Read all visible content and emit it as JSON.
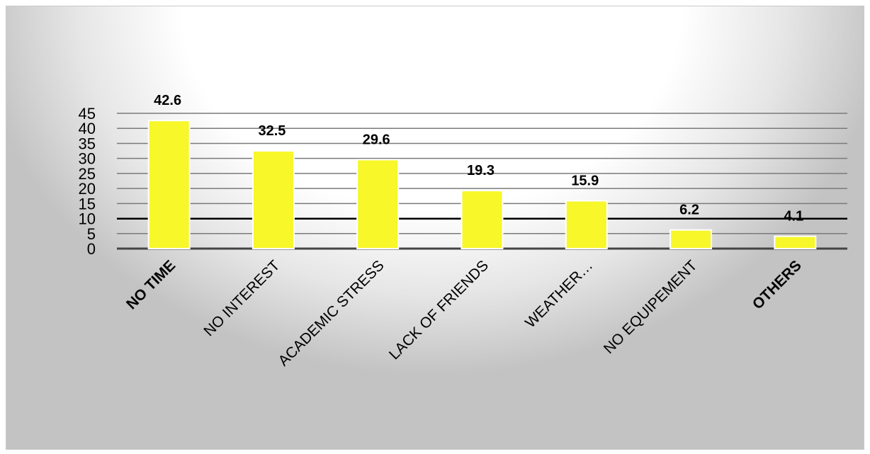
{
  "chart_data": {
    "type": "bar",
    "title": "",
    "xlabel": "",
    "ylabel": "",
    "categories": [
      "NO TIME",
      "NO INTEREST",
      "ACADEMIC STRESS",
      "LACK OF FRIENDS",
      "WEATHER…",
      "NO EQUIPEMENT",
      "OTHERS"
    ],
    "bold_categories": [
      "NO TIME",
      "OTHERS"
    ],
    "values": [
      42.6,
      32.5,
      29.6,
      19.3,
      15.9,
      6.2,
      4.1
    ],
    "data_labels": [
      "42.6",
      "32.5",
      "29.6",
      "19.3",
      "15.9",
      "6.2",
      "4.1"
    ],
    "ylim": [
      0,
      45
    ],
    "yticks": [
      0,
      5,
      10,
      15,
      20,
      25,
      30,
      35,
      40,
      45
    ],
    "grid": true,
    "legend": "none",
    "colors": {
      "bar_fill": "#f7f729",
      "bar_stroke": "#ffffff",
      "gridline": "#7a7a7a",
      "axis": "#444444",
      "emphasis_gridline": "#000000"
    }
  }
}
